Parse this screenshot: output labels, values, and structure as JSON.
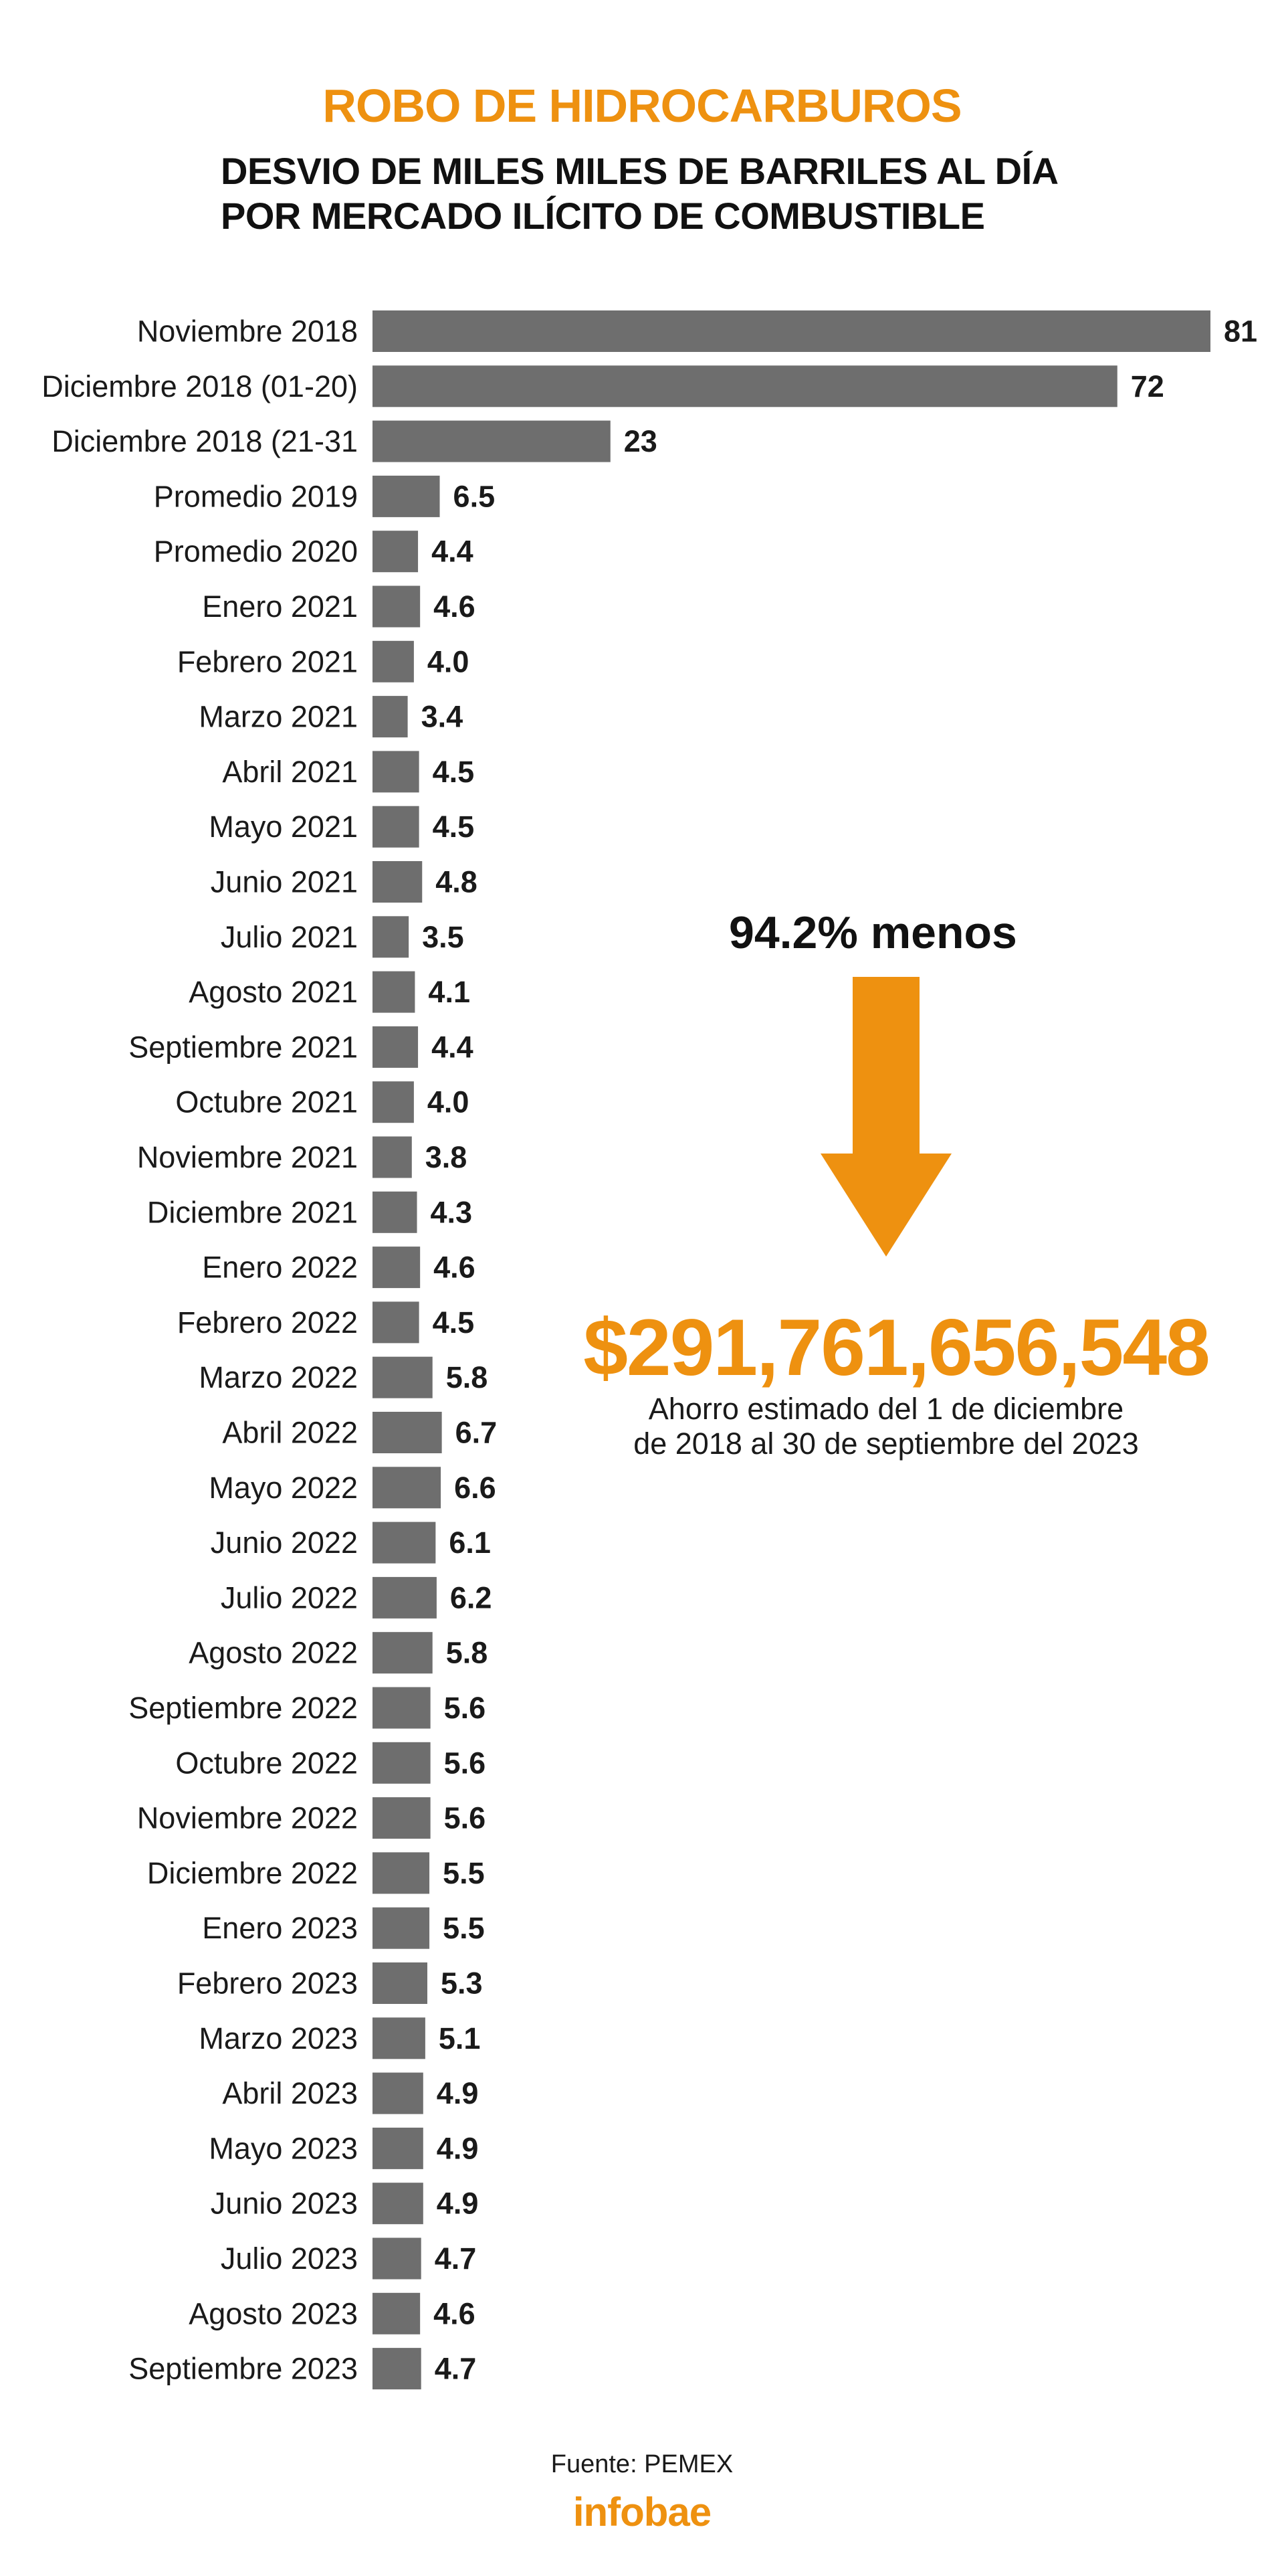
{
  "header": {
    "title": "ROBO DE HIDROCARBUROS",
    "subtitle_line1": "DESVIO DE MILES MILES DE BARRILES AL DÍA",
    "subtitle_line2": "POR MERCADO ILÍCITO DE COMBUSTIBLE"
  },
  "callout": {
    "change": "94.2% menos",
    "amount": "$291,761,656,548",
    "note_line1": "Ahorro estimado del 1 de diciembre",
    "note_line2": "de 2018 al 30 de septiembre del 2023"
  },
  "footer": {
    "source": "Fuente: PEMEX",
    "logo": "infobae"
  },
  "colors": {
    "accent": "#ee9110",
    "bar": "#6e6e6e",
    "text": "#1a1a1a"
  },
  "chart_data": {
    "type": "bar",
    "orientation": "horizontal",
    "title": "ROBO DE HIDROCARBUROS",
    "subtitle": "DESVIO DE MILES MILES DE BARRILES AL DÍA POR MERCADO ILÍCITO DE COMBUSTIBLE",
    "xlabel": "",
    "ylabel": "",
    "grid": false,
    "categories": [
      "Noviembre 2018",
      "Diciembre 2018 (01-20)",
      "Diciembre 2018 (21-31",
      "Promedio 2019",
      "Promedio 2020",
      "Enero 2021",
      "Febrero 2021",
      "Marzo 2021",
      "Abril 2021",
      "Mayo 2021",
      "Junio 2021",
      "Julio 2021",
      "Agosto 2021",
      "Septiembre 2021",
      "Octubre 2021",
      "Noviembre 2021",
      "Diciembre 2021",
      "Enero 2022",
      "Febrero 2022",
      "Marzo 2022",
      "Abril 2022",
      "Mayo 2022",
      "Junio 2022",
      "Julio 2022",
      "Agosto 2022",
      "Septiembre 2022",
      "Octubre 2022",
      "Noviembre 2022",
      "Diciembre 2022",
      "Enero 2023",
      "Febrero 2023",
      "Marzo 2023",
      "Abril 2023",
      "Mayo 2023",
      "Junio 2023",
      "Julio 2023",
      "Agosto 2023",
      "Septiembre 2023"
    ],
    "values": [
      81,
      72,
      23,
      6.5,
      4.4,
      4.6,
      4.0,
      3.4,
      4.5,
      4.5,
      4.8,
      3.5,
      4.1,
      4.4,
      4.0,
      3.8,
      4.3,
      4.6,
      4.5,
      5.8,
      6.7,
      6.6,
      6.1,
      6.2,
      5.8,
      5.6,
      5.6,
      5.6,
      5.5,
      5.5,
      5.3,
      5.1,
      4.9,
      4.9,
      4.9,
      4.7,
      4.6,
      4.7
    ],
    "value_labels": [
      "81",
      "72",
      "23",
      "6.5",
      "4.4",
      "4.6",
      "4.0",
      "3.4",
      "4.5",
      "4.5",
      "4.8",
      "3.5",
      "4.1",
      "4.4",
      "4.0",
      "3.8",
      "4.3",
      "4.6",
      "4.5",
      "5.8",
      "6.7",
      "6.6",
      "6.1",
      "6.2",
      "5.8",
      "5.6",
      "5.6",
      "5.6",
      "5.5",
      "5.5",
      "5.3",
      "5.1",
      "4.9",
      "4.9",
      "4.9",
      "4.7",
      "4.6",
      "4.7"
    ],
    "xlim": [
      0,
      81
    ]
  }
}
